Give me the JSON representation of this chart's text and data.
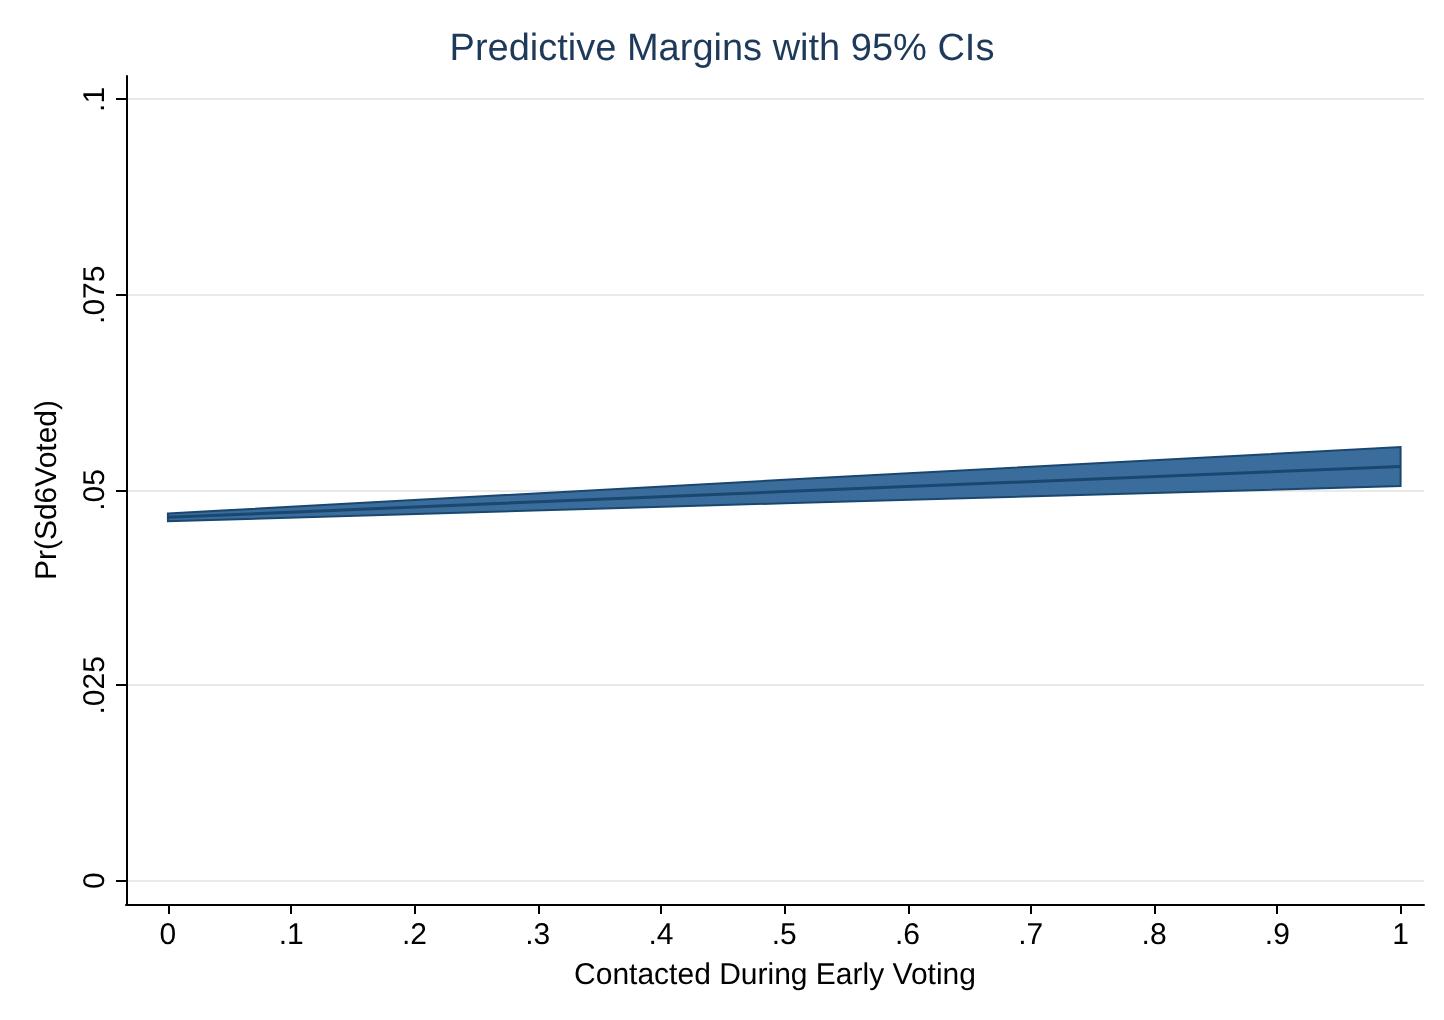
{
  "chart_data": {
    "type": "line",
    "title": "Predictive Margins with 95% CIs",
    "xlabel": "Contacted During Early Voting",
    "ylabel": "Pr(Sd6Voted)",
    "x": [
      0,
      0.5,
      1
    ],
    "series": [
      {
        "color": "#1a476f",
        "values": [
          0.0465,
          0.0498,
          0.053
        ],
        "lower": [
          0.046,
          0.0483,
          0.0505
        ],
        "upper": [
          0.047,
          0.0513,
          0.0555
        ]
      }
    ],
    "xlim": [
      -0.034,
      1.019
    ],
    "xticks": [
      {
        "value": 0,
        "label": "0"
      },
      {
        "value": 0.1,
        "label": ".1"
      },
      {
        "value": 0.2,
        "label": ".2"
      },
      {
        "value": 0.3,
        "label": ".3"
      },
      {
        "value": 0.4,
        "label": ".4"
      },
      {
        "value": 0.5,
        "label": ".5"
      },
      {
        "value": 0.6,
        "label": ".6"
      },
      {
        "value": 0.7,
        "label": ".7"
      },
      {
        "value": 0.8,
        "label": ".8"
      },
      {
        "value": 0.9,
        "label": ".9"
      },
      {
        "value": 1,
        "label": "1"
      }
    ],
    "ylim": [
      -0.003,
      0.103
    ],
    "yticks": [
      {
        "value": 0,
        "label": "0"
      },
      {
        "value": 0.025,
        "label": ".025"
      },
      {
        "value": 0.05,
        "label": ".05"
      },
      {
        "value": 0.075,
        "label": ".075"
      },
      {
        "value": 0.1,
        "label": ".1"
      }
    ],
    "grid": "y"
  }
}
